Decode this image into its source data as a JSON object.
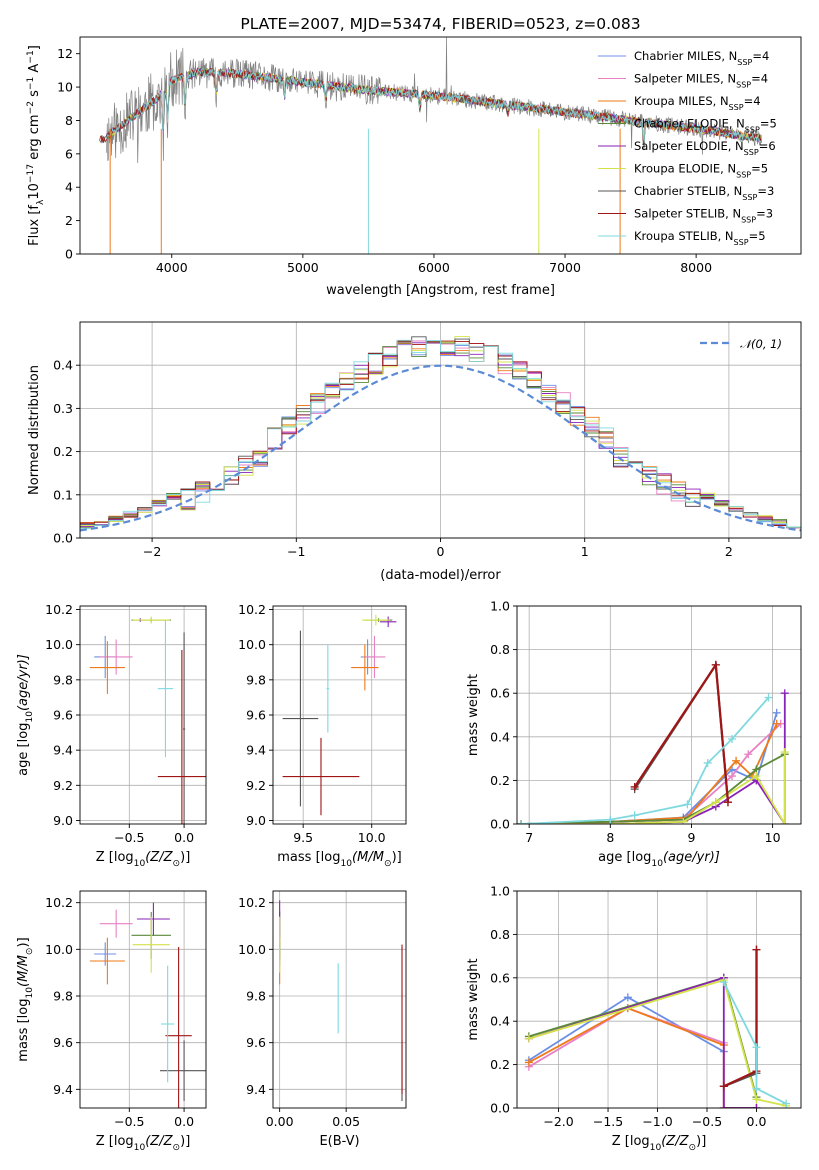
{
  "colors": {
    "Chabrier MILES": "#6b8fe6",
    "Salpeter MILES": "#e881c4",
    "Kroupa MILES": "#ee7a1a",
    "Chabrier ELODIE": "#5a8a3a",
    "Salpeter ELODIE": "#8a22b8",
    "Kroupa ELODIE": "#d4e24a",
    "Chabrier STELIB": "#555555",
    "Salpeter STELIB": "#a01515",
    "Kroupa STELIB": "#7fd9df",
    "normal": "#5b8ad6"
  },
  "chart_data": [
    {
      "id": "spectrum",
      "type": "line",
      "title": "PLATE=2007, MJD=53474, FIBERID=0523, z=0.083",
      "xlabel": "wavelength [Angstrom, rest frame]",
      "ylabel": "Flux [f",
      "ylabel_parts": [
        "Flux [f",
        "λ",
        "10",
        "−17",
        " erg cm",
        "−2",
        " s",
        "−1",
        " A",
        "−1",
        "]"
      ],
      "xlim": [
        3300,
        8800
      ],
      "ylim": [
        0,
        13
      ],
      "xticks": [
        "4000",
        "5000",
        "6000",
        "7000",
        "8000"
      ],
      "xtick_values": [
        4000,
        5000,
        6000,
        7000,
        8000
      ],
      "yticks": [
        "0",
        "2",
        "4",
        "6",
        "8",
        "10",
        "12"
      ],
      "ytick_values": [
        0,
        2,
        4,
        6,
        8,
        10,
        12
      ],
      "continuum": [
        [
          3500,
          7.0
        ],
        [
          3700,
          8.2
        ],
        [
          3900,
          9.4
        ],
        [
          4000,
          10.4
        ],
        [
          4200,
          10.9
        ],
        [
          4500,
          10.8
        ],
        [
          5000,
          10.3
        ],
        [
          5500,
          9.8
        ],
        [
          6000,
          9.5
        ],
        [
          6500,
          9.0
        ],
        [
          7000,
          8.5
        ],
        [
          7500,
          8.0
        ],
        [
          8000,
          7.5
        ],
        [
          8500,
          6.9
        ]
      ],
      "legend": [
        "Chabrier MILES, N",
        "Salpeter MILES, N",
        "Kroupa MILES, N",
        "Chabrier ELODIE, N",
        "Salpeter ELODIE, N",
        "Kroupa ELODIE, N",
        "Chabrier STELIB, N",
        "Salpeter STELIB, N",
        "Kroupa STELIB, N"
      ],
      "legend_sub": "SSP",
      "legend_vals": [
        "=4",
        "=4",
        "=4",
        "=5",
        "=6",
        "=5",
        "=3",
        "=3",
        "=5"
      ],
      "legend_placement": "top-right"
    },
    {
      "id": "residuals",
      "type": "step",
      "xlabel": "(data-model)/error",
      "ylabel": "Normed distribution",
      "xlim": [
        -2.5,
        2.5
      ],
      "ylim": [
        0,
        0.5
      ],
      "xticks": [
        "−2",
        "−1",
        "0",
        "1",
        "2"
      ],
      "xtick_values": [
        -2,
        -1,
        0,
        1,
        2
      ],
      "yticks": [
        "0.0",
        "0.1",
        "0.2",
        "0.3",
        "0.4"
      ],
      "ytick_values": [
        0,
        0.1,
        0.2,
        0.3,
        0.4
      ],
      "grid": true,
      "bin_width": 0.1,
      "legend_label": "𝒩(0, 1)",
      "legend_placement": "top-right"
    },
    {
      "id": "age-vs-z",
      "type": "errorbar",
      "xlabel": "Z [log",
      "xlabel_parts": [
        "Z [log",
        "10",
        "(Z/Z",
        "⊙",
        ")]"
      ],
      "ylabel_parts": [
        "age  [log",
        "10",
        "(age/yr)]"
      ],
      "xlim": [
        -0.95,
        0.2
      ],
      "ylim": [
        8.98,
        10.22
      ],
      "xticks": [
        "−0.5",
        "0.0"
      ],
      "xtick_values": [
        -0.5,
        0.0
      ],
      "yticks": [
        "9.0",
        "9.2",
        "9.4",
        "9.6",
        "9.8",
        "10.0",
        "10.2"
      ],
      "ytick_values": [
        9.0,
        9.2,
        9.4,
        9.6,
        9.8,
        10.0,
        10.2
      ],
      "grid": true,
      "points": [
        {
          "model": "Chabrier MILES",
          "x": -0.72,
          "xerr": 0.1,
          "y": 9.93,
          "yerr": 0.12
        },
        {
          "model": "Salpeter MILES",
          "x": -0.62,
          "xerr": 0.15,
          "y": 9.93,
          "yerr": 0.1
        },
        {
          "model": "Kroupa MILES",
          "x": -0.7,
          "xerr": 0.16,
          "y": 9.87,
          "yerr": 0.15
        },
        {
          "model": "Chabrier ELODIE",
          "x": -0.3,
          "xerr": 0.18,
          "y": 10.14,
          "yerr": 0.01
        },
        {
          "model": "Salpeter ELODIE",
          "x": -0.4,
          "xerr": 0.01,
          "y": 10.14,
          "yerr": 0.01
        },
        {
          "model": "Kroupa ELODIE",
          "x": -0.3,
          "xerr": 0.17,
          "y": 10.14,
          "yerr": 0.02
        },
        {
          "model": "Chabrier STELIB",
          "x": 0.0,
          "xerr": 0.01,
          "y": 9.52,
          "yerr": 0.55
        },
        {
          "model": "Salpeter STELIB",
          "x": -0.02,
          "xerr": 0.22,
          "y": 9.25,
          "yerr": 0.72
        },
        {
          "model": "Kroupa STELIB",
          "x": -0.17,
          "xerr": 0.07,
          "y": 9.75,
          "yerr": 0.39
        }
      ]
    },
    {
      "id": "age-vs-mass",
      "type": "errorbar",
      "xlabel_parts": [
        "mass [log",
        "10",
        "(M/M",
        "⊙",
        ")]"
      ],
      "xlim": [
        9.28,
        10.25
      ],
      "ylim": [
        8.98,
        10.22
      ],
      "xticks": [
        "9.5",
        "10.0"
      ],
      "xtick_values": [
        9.5,
        10.0
      ],
      "yticks": [
        "9.0",
        "9.2",
        "9.4",
        "9.6",
        "9.8",
        "10.0",
        "10.2"
      ],
      "ytick_values": [
        9.0,
        9.2,
        9.4,
        9.6,
        9.8,
        10.0,
        10.2
      ],
      "grid": true,
      "points": [
        {
          "model": "Chabrier MILES",
          "x": 9.97,
          "xerr": 0.05,
          "y": 9.93,
          "yerr": 0.1
        },
        {
          "model": "Salpeter MILES",
          "x": 10.02,
          "xerr": 0.08,
          "y": 9.93,
          "yerr": 0.12
        },
        {
          "model": "Kroupa MILES",
          "x": 9.95,
          "xerr": 0.1,
          "y": 9.87,
          "yerr": 0.13
        },
        {
          "model": "Chabrier ELODIE",
          "x": 10.05,
          "xerr": 0.1,
          "y": 10.14,
          "yerr": 0.01
        },
        {
          "model": "Salpeter ELODIE",
          "x": 10.12,
          "xerr": 0.06,
          "y": 10.13,
          "yerr": 0.03
        },
        {
          "model": "Kroupa ELODIE",
          "x": 10.03,
          "xerr": 0.1,
          "y": 10.14,
          "yerr": 0.03
        },
        {
          "model": "Chabrier STELIB",
          "x": 9.48,
          "xerr": 0.13,
          "y": 9.58,
          "yerr": 0.5
        },
        {
          "model": "Salpeter STELIB",
          "x": 9.63,
          "xerr": 0.28,
          "y": 9.25,
          "yerr": 0.22
        },
        {
          "model": "Kroupa STELIB",
          "x": 9.68,
          "xerr": 0.01,
          "y": 9.75,
          "yerr": 0.25
        }
      ]
    },
    {
      "id": "weight-vs-age",
      "type": "line",
      "xlabel_parts": [
        "age  [log",
        "10",
        "(age/yr)]"
      ],
      "ylabel": "mass weight",
      "xlim": [
        6.85,
        10.35
      ],
      "ylim": [
        0,
        1
      ],
      "xticks": [
        "7",
        "8",
        "9",
        "10"
      ],
      "xtick_values": [
        7,
        8,
        9,
        10
      ],
      "yticks": [
        "0.0",
        "0.2",
        "0.4",
        "0.6",
        "0.8",
        "1.0"
      ],
      "ytick_values": [
        0,
        0.2,
        0.4,
        0.6,
        0.8,
        1.0
      ],
      "grid": true,
      "series": [
        {
          "model": "Chabrier MILES",
          "x": [
            6.9,
            8.0,
            8.9,
            9.5,
            9.8,
            10.05
          ],
          "y": [
            0.0,
            0.01,
            0.03,
            0.25,
            0.2,
            0.51
          ]
        },
        {
          "model": "Salpeter MILES",
          "x": [
            6.9,
            8.0,
            8.9,
            9.5,
            9.7,
            10.1
          ],
          "y": [
            0.0,
            0.01,
            0.02,
            0.22,
            0.32,
            0.46
          ]
        },
        {
          "model": "Kroupa MILES",
          "x": [
            6.9,
            8.0,
            8.95,
            9.55,
            9.75,
            10.05
          ],
          "y": [
            0.0,
            0.01,
            0.03,
            0.29,
            0.22,
            0.46
          ]
        },
        {
          "model": "Chabrier ELODIE",
          "x": [
            6.9,
            8.0,
            8.9,
            9.3,
            9.8,
            10.15
          ],
          "y": [
            0.0,
            0.01,
            0.02,
            0.1,
            0.25,
            0.32
          ]
        },
        {
          "model": "Salpeter ELODIE",
          "x": [
            6.9,
            8.0,
            8.9,
            9.3,
            9.8,
            10.15,
            10.15
          ],
          "y": [
            0.0,
            0.0,
            0.01,
            0.08,
            0.2,
            0.0,
            0.6
          ]
        },
        {
          "model": "Kroupa ELODIE",
          "x": [
            6.9,
            8.0,
            8.9,
            9.3,
            9.8,
            10.15,
            10.15
          ],
          "y": [
            0.0,
            0.0,
            0.01,
            0.1,
            0.22,
            0.0,
            0.33
          ]
        },
        {
          "model": "Chabrier STELIB",
          "x": [
            8.3,
            9.3,
            9.45
          ],
          "y": [
            0.16,
            0.73,
            0.1
          ]
        },
        {
          "model": "Salpeter STELIB",
          "x": [
            8.3,
            9.3,
            9.45
          ],
          "y": [
            0.17,
            0.73,
            0.1
          ]
        },
        {
          "model": "Kroupa STELIB",
          "x": [
            6.9,
            8.0,
            8.3,
            8.95,
            9.2,
            9.5,
            9.95
          ],
          "y": [
            0.0,
            0.02,
            0.04,
            0.09,
            0.28,
            0.39,
            0.58
          ]
        }
      ]
    },
    {
      "id": "mass-vs-z",
      "type": "errorbar",
      "xlabel_parts": [
        "Z [log",
        "10",
        "(Z/Z",
        "⊙",
        ")]"
      ],
      "ylabel_parts": [
        "mass [log",
        "10",
        "(M/M",
        "⊙",
        ")]"
      ],
      "xlim": [
        -0.95,
        0.2
      ],
      "ylim": [
        9.32,
        10.25
      ],
      "xticks": [
        "−0.5",
        "0.0"
      ],
      "xtick_values": [
        -0.5,
        0.0
      ],
      "yticks": [
        "9.4",
        "9.6",
        "9.8",
        "10.0",
        "10.2"
      ],
      "ytick_values": [
        9.4,
        9.6,
        9.8,
        10.0,
        10.2
      ],
      "grid": true,
      "points": [
        {
          "model": "Chabrier MILES",
          "x": -0.72,
          "xerr": 0.1,
          "y": 9.98,
          "yerr": 0.05
        },
        {
          "model": "Salpeter MILES",
          "x": -0.62,
          "xerr": 0.15,
          "y": 10.11,
          "yerr": 0.06
        },
        {
          "model": "Kroupa MILES",
          "x": -0.7,
          "xerr": 0.16,
          "y": 9.95,
          "yerr": 0.1
        },
        {
          "model": "Chabrier ELODIE",
          "x": -0.3,
          "xerr": 0.18,
          "y": 10.06,
          "yerr": 0.1
        },
        {
          "model": "Salpeter ELODIE",
          "x": -0.28,
          "xerr": 0.15,
          "y": 10.13,
          "yerr": 0.07
        },
        {
          "model": "Kroupa ELODIE",
          "x": -0.3,
          "xerr": 0.17,
          "y": 10.02,
          "yerr": 0.12
        },
        {
          "model": "Chabrier STELIB",
          "x": 0.0,
          "xerr": 0.22,
          "y": 9.48,
          "yerr": 0.13
        },
        {
          "model": "Salpeter STELIB",
          "x": -0.05,
          "xerr": 0.12,
          "y": 9.63,
          "yerr": 0.38
        },
        {
          "model": "Kroupa STELIB",
          "x": -0.15,
          "xerr": 0.06,
          "y": 9.68,
          "yerr": 0.25
        }
      ]
    },
    {
      "id": "mass-vs-ebv",
      "type": "errorbar",
      "xlabel": "E(B-V)",
      "xlim": [
        -0.005,
        0.095
      ],
      "ylim": [
        9.32,
        10.25
      ],
      "xticks": [
        "0.00",
        "0.05"
      ],
      "xtick_values": [
        0.0,
        0.05
      ],
      "yticks": [
        "9.4",
        "9.6",
        "9.8",
        "10.0",
        "10.2"
      ],
      "ytick_values": [
        9.4,
        9.6,
        9.8,
        10.0,
        10.2
      ],
      "grid": true,
      "points": [
        {
          "model": "Chabrier MILES",
          "x": 0.0,
          "xerr": 0.0,
          "y": 9.98,
          "yerr": 0.05
        },
        {
          "model": "Salpeter MILES",
          "x": 0.0,
          "xerr": 0.0,
          "y": 10.11,
          "yerr": 0.06
        },
        {
          "model": "Kroupa MILES",
          "x": 0.0,
          "xerr": 0.0,
          "y": 9.95,
          "yerr": 0.1
        },
        {
          "model": "Chabrier ELODIE",
          "x": 0.0,
          "xerr": 0.0,
          "y": 10.06,
          "yerr": 0.1
        },
        {
          "model": "Salpeter ELODIE",
          "x": 0.0,
          "xerr": 0.0,
          "y": 10.13,
          "yerr": 0.08
        },
        {
          "model": "Kroupa ELODIE",
          "x": 0.0,
          "xerr": 0.0,
          "y": 10.02,
          "yerr": 0.12
        },
        {
          "model": "Chabrier STELIB",
          "x": 0.092,
          "xerr": 0.0,
          "y": 9.48,
          "yerr": 0.13
        },
        {
          "model": "Salpeter STELIB",
          "x": 0.092,
          "xerr": 0.0,
          "y": 9.7,
          "yerr": 0.32
        },
        {
          "model": "Kroupa STELIB",
          "x": 0.044,
          "xerr": 0.0,
          "y": 9.79,
          "yerr": 0.15
        }
      ]
    },
    {
      "id": "weight-vs-z",
      "type": "line",
      "xlabel_parts": [
        "Z [log",
        "10",
        "(Z/Z",
        "⊙",
        ")]"
      ],
      "ylabel": "mass weight",
      "xlim": [
        -2.42,
        0.45
      ],
      "ylim": [
        0,
        1
      ],
      "xticks": [
        "−2.0",
        "−1.5",
        "−1.0",
        "−0.5",
        "0.0"
      ],
      "xtick_values": [
        -2.0,
        -1.5,
        -1.0,
        -0.5,
        0.0
      ],
      "yticks": [
        "0.0",
        "0.2",
        "0.4",
        "0.6",
        "0.8",
        "1.0"
      ],
      "ytick_values": [
        0,
        0.2,
        0.4,
        0.6,
        0.8,
        1.0
      ],
      "grid": true,
      "series": [
        {
          "model": "Chabrier MILES",
          "x": [
            -2.3,
            -1.3,
            -0.33,
            -0.33,
            0.0
          ],
          "y": [
            0.22,
            0.51,
            0.26,
            0.0,
            0.0
          ]
        },
        {
          "model": "Salpeter MILES",
          "x": [
            -2.3,
            -1.3,
            -0.33,
            -0.33,
            0.0
          ],
          "y": [
            0.19,
            0.46,
            0.3,
            0.0,
            0.0
          ]
        },
        {
          "model": "Kroupa MILES",
          "x": [
            -2.3,
            -1.3,
            -0.33,
            -0.33,
            0.0
          ],
          "y": [
            0.21,
            0.46,
            0.29,
            0.0,
            0.0
          ]
        },
        {
          "model": "Chabrier ELODIE",
          "x": [
            -2.3,
            -0.33,
            0.0
          ],
          "y": [
            0.33,
            0.6,
            0.05
          ]
        },
        {
          "model": "Salpeter ELODIE",
          "x": [
            -2.3,
            -0.33,
            -0.33,
            0.0
          ],
          "y": [
            0.32,
            0.6,
            0.0,
            0.0
          ]
        },
        {
          "model": "Kroupa ELODIE",
          "x": [
            -2.3,
            -0.33,
            0.0,
            0.3
          ],
          "y": [
            0.32,
            0.59,
            0.04,
            0.01
          ]
        },
        {
          "model": "Chabrier STELIB",
          "x": [
            -0.33,
            0.0,
            0.0
          ],
          "y": [
            0.1,
            0.16,
            0.73
          ]
        },
        {
          "model": "Salpeter STELIB",
          "x": [
            -0.33,
            0.0,
            0.0
          ],
          "y": [
            0.1,
            0.17,
            0.73
          ]
        },
        {
          "model": "Kroupa STELIB",
          "x": [
            -0.33,
            0.0,
            0.0,
            0.3
          ],
          "y": [
            0.58,
            0.28,
            0.09,
            0.02
          ]
        }
      ]
    }
  ]
}
